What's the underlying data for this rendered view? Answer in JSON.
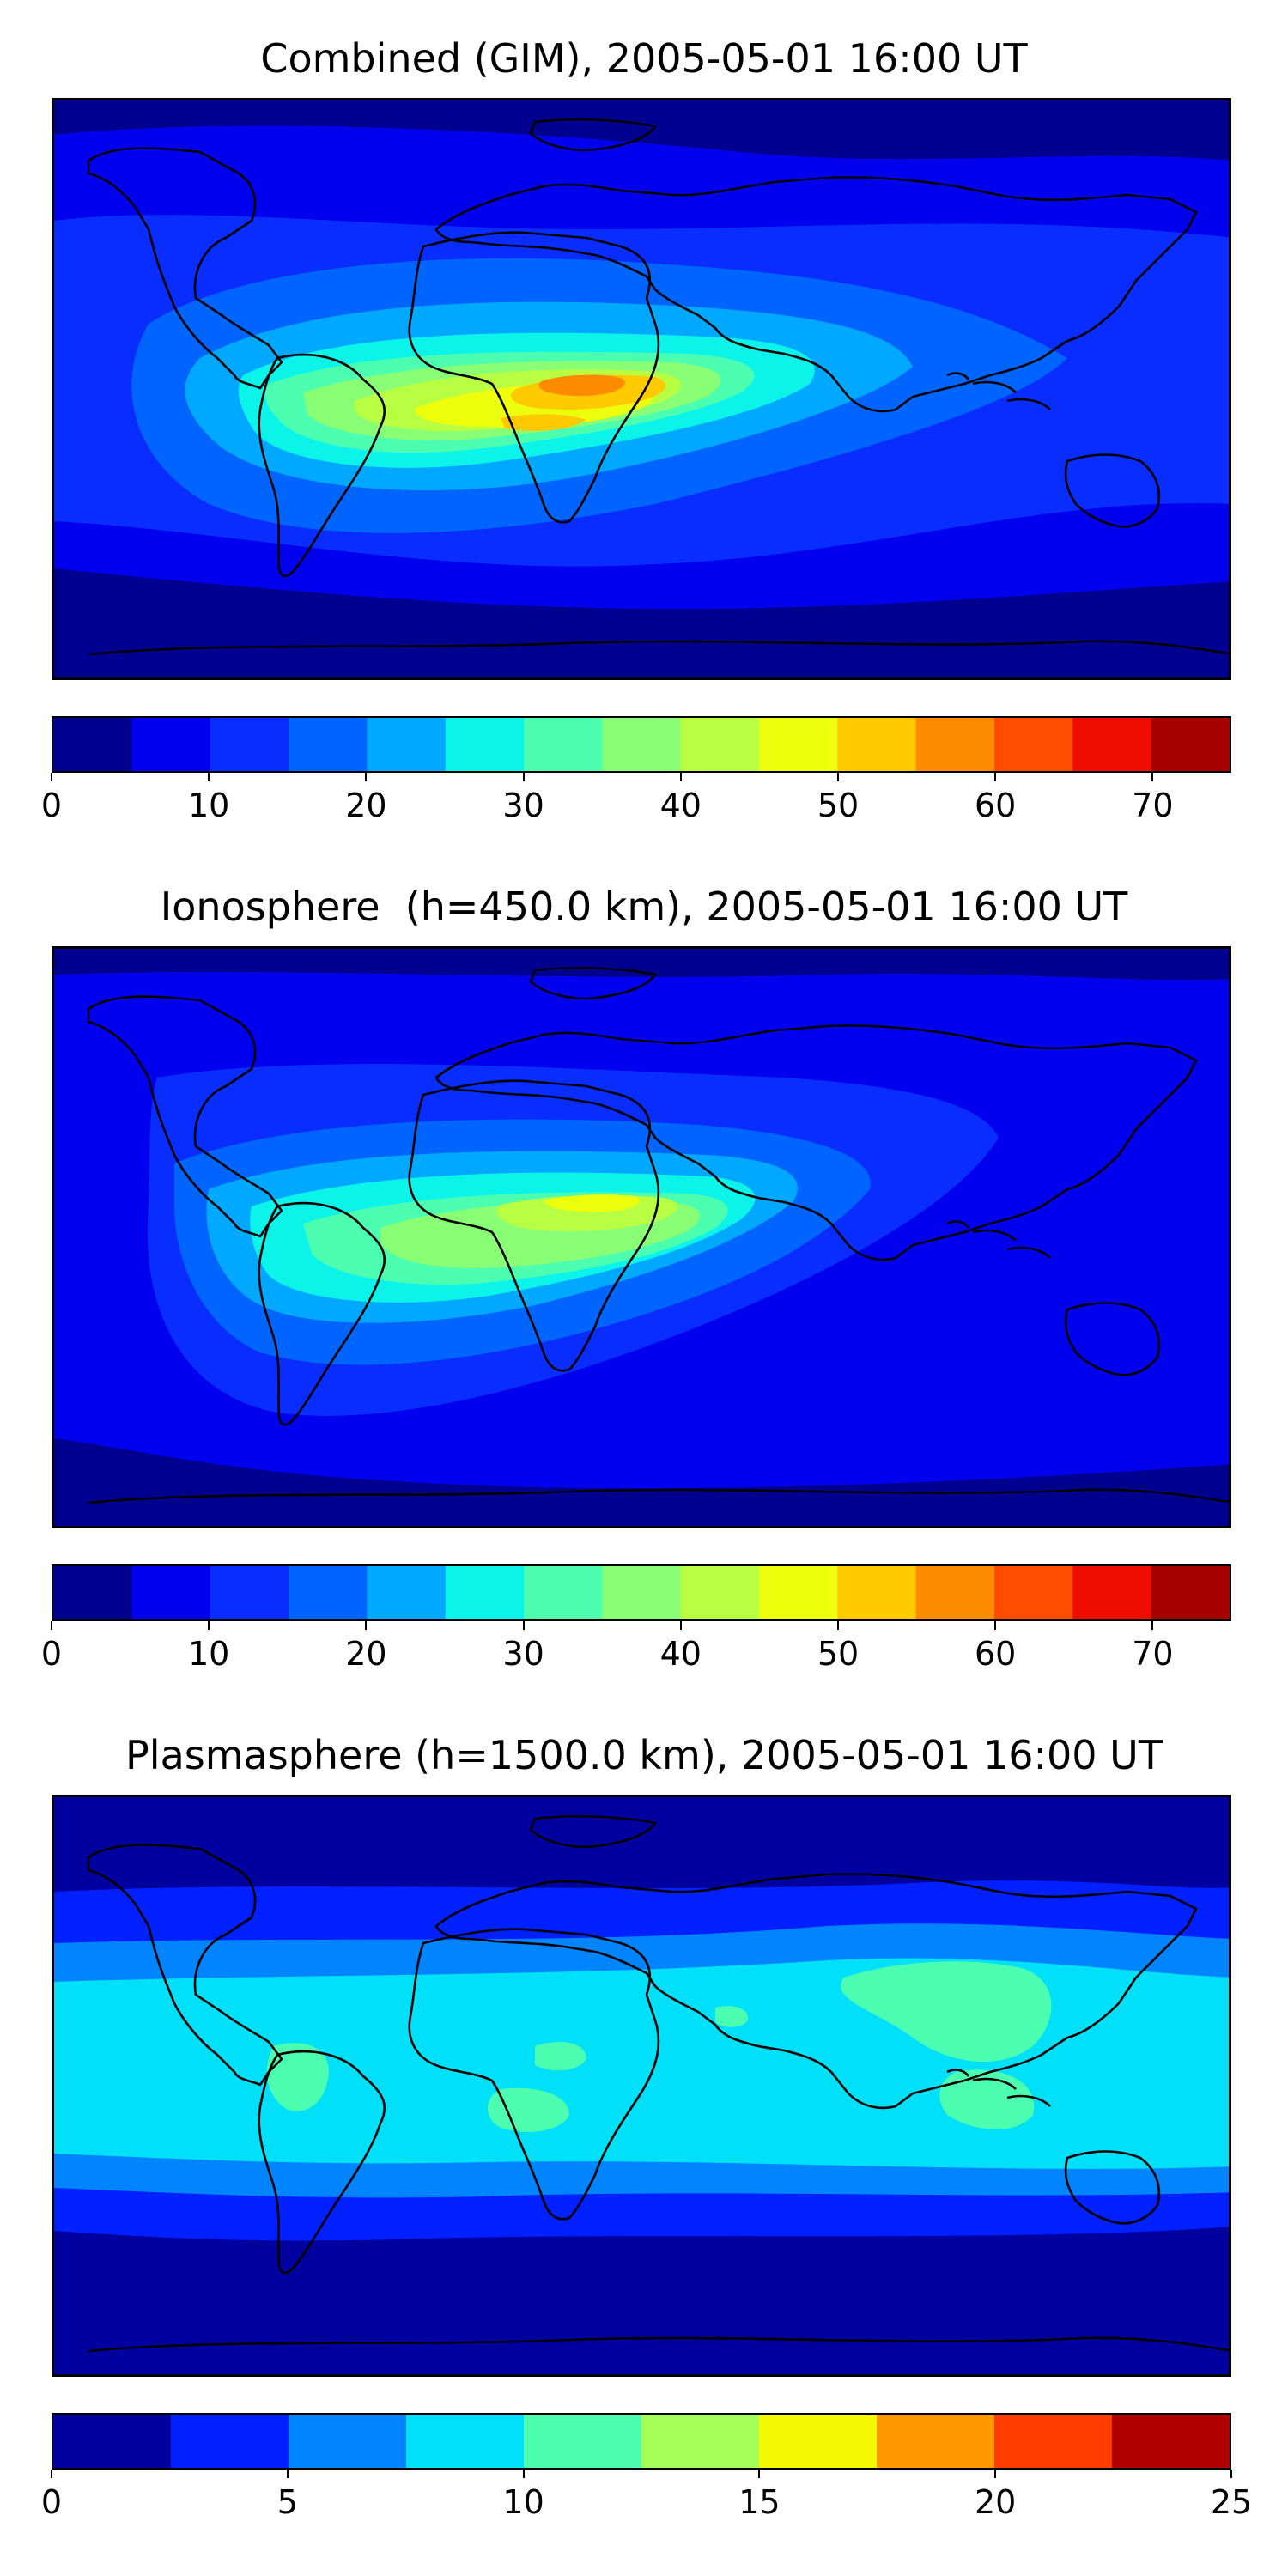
{
  "chart_data": [
    {
      "type": "heatmap",
      "title": "Combined (GIM), 2005-05-01 16:00 UT",
      "map": "world continents, equirectangular",
      "colorbar": {
        "levels": [
          0,
          5,
          10,
          15,
          20,
          25,
          30,
          35,
          40,
          45,
          50,
          55,
          60,
          65,
          70,
          75
        ],
        "colors": [
          "#00008f",
          "#0000ef",
          "#0a2dff",
          "#0064ff",
          "#00a8ff",
          "#0cf4ea",
          "#4cffb0",
          "#88ff74",
          "#b8ff44",
          "#ecff0c",
          "#ffcb00",
          "#ff8c00",
          "#ff4c00",
          "#ef0c00",
          "#a60000"
        ],
        "ticks": [
          0,
          10,
          20,
          30,
          40,
          50,
          60,
          70
        ]
      },
      "peak_region": "equatorial Atlantic / West Africa",
      "peak_value": 60
    },
    {
      "type": "heatmap",
      "title": "Ionosphere  (h=450.0 km), 2005-05-01 16:00 UT",
      "map": "world continents, equirectangular",
      "colorbar": {
        "levels": [
          0,
          5,
          10,
          15,
          20,
          25,
          30,
          35,
          40,
          45,
          50,
          55,
          60,
          65,
          70,
          75
        ],
        "colors": [
          "#00008f",
          "#0000ef",
          "#0a2dff",
          "#0064ff",
          "#00a8ff",
          "#0cf4ea",
          "#4cffb0",
          "#88ff74",
          "#b8ff44",
          "#ecff0c",
          "#ffcb00",
          "#ff8c00",
          "#ff4c00",
          "#ef0c00",
          "#a60000"
        ],
        "ticks": [
          0,
          10,
          20,
          30,
          40,
          50,
          60,
          70
        ]
      },
      "peak_region": "equatorial Atlantic / West Africa",
      "peak_value": 50
    },
    {
      "type": "heatmap",
      "title": "Plasmasphere (h=1500.0 km), 2005-05-01 16:00 UT",
      "map": "world continents, equirectangular",
      "colorbar": {
        "levels": [
          0,
          2.5,
          5,
          7.5,
          10,
          12.5,
          15,
          17.5,
          20,
          22.5,
          25
        ],
        "colors": [
          "#00009e",
          "#0020ff",
          "#0084ff",
          "#00e0f8",
          "#4cffb0",
          "#a4ff58",
          "#f4f800",
          "#ff9800",
          "#ff3c00",
          "#b00000"
        ],
        "ticks": [
          0,
          5,
          10,
          15,
          20,
          25
        ]
      },
      "peak_region": "low-latitude band, Asia / Pacific",
      "peak_value": 12.5
    }
  ]
}
